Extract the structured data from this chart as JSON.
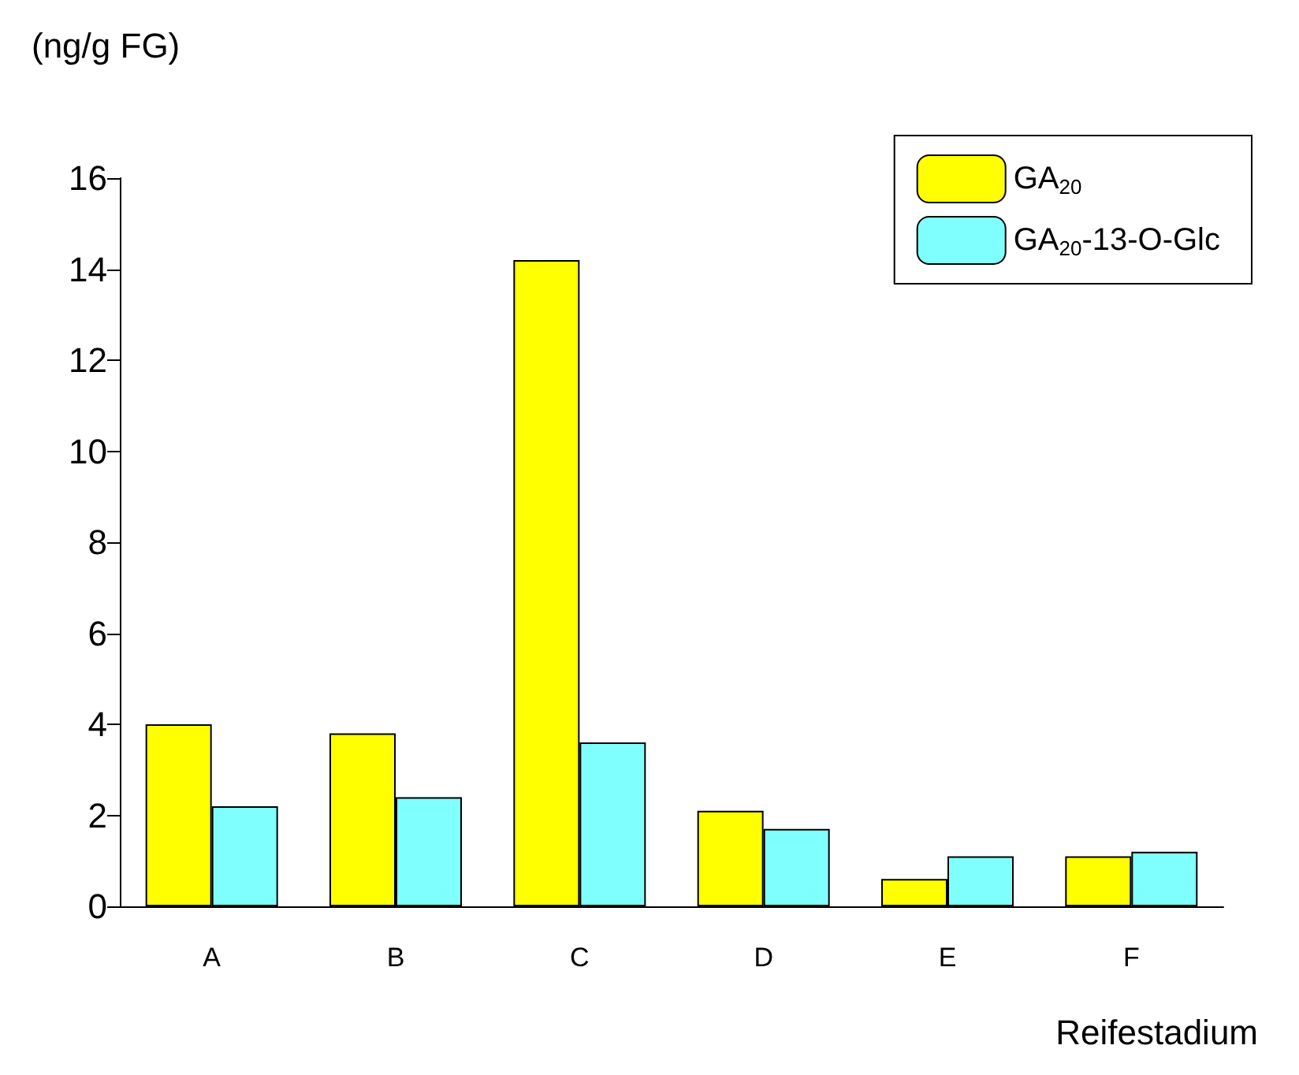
{
  "chart_data": {
    "type": "bar",
    "ylabel": "(ng/g FG)",
    "xlabel": "Reifestadium",
    "categories": [
      "A",
      "B",
      "C",
      "D",
      "E",
      "F"
    ],
    "series": [
      {
        "name": "GA$_{20}$",
        "color": "#ffff00",
        "values": [
          4.0,
          3.8,
          14.2,
          2.1,
          0.6,
          1.1
        ]
      },
      {
        "name": "GA$_{20}$-13-O-Glc",
        "color": "#80ffff",
        "values": [
          2.2,
          2.4,
          3.6,
          1.7,
          1.1,
          1.2
        ]
      }
    ],
    "ylim": [
      0,
      16
    ],
    "yticks": [
      0,
      2,
      4,
      6,
      8,
      10,
      12,
      14,
      16
    ],
    "grid": false,
    "legend": "top right"
  }
}
